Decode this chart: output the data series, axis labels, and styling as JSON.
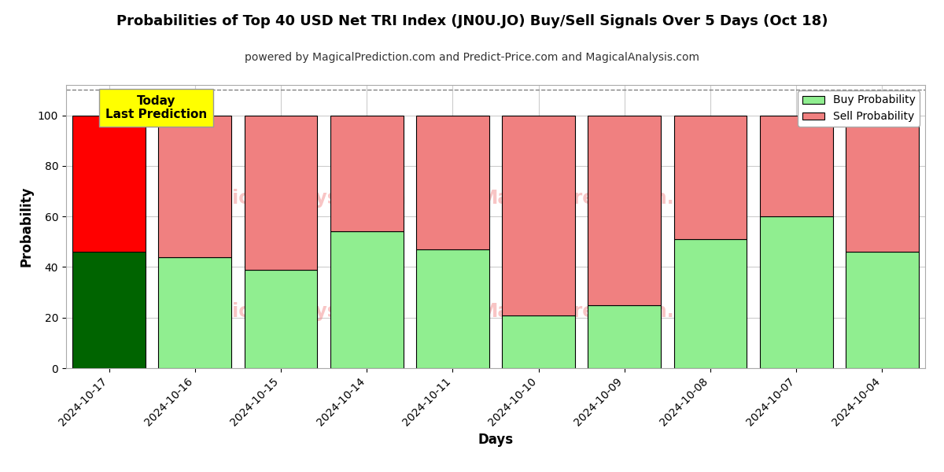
{
  "title": "Probabilities of Top 40 USD Net TRI Index (JN0U.JO) Buy/Sell Signals Over 5 Days (Oct 18)",
  "subtitle": "powered by MagicalPrediction.com and Predict-Price.com and MagicalAnalysis.com",
  "xlabel": "Days",
  "ylabel": "Probability",
  "dates": [
    "2024-10-17",
    "2024-10-16",
    "2024-10-15",
    "2024-10-14",
    "2024-10-11",
    "2024-10-10",
    "2024-10-09",
    "2024-10-08",
    "2024-10-07",
    "2024-10-04"
  ],
  "buy_probs": [
    46,
    44,
    39,
    54,
    47,
    21,
    25,
    51,
    60,
    46
  ],
  "sell_probs": [
    54,
    56,
    61,
    46,
    53,
    79,
    75,
    49,
    40,
    54
  ],
  "today_buy_color": "#006400",
  "today_sell_color": "#ff0000",
  "buy_color": "#90EE90",
  "sell_color": "#F08080",
  "bar_edgecolor": "#000000",
  "today_annotation_bg": "#ffff00",
  "today_annotation_text": "Today\nLast Prediction",
  "ylim": [
    0,
    112
  ],
  "yticks": [
    0,
    20,
    40,
    60,
    80,
    100
  ],
  "dashed_line_y": 110,
  "watermark_color": "#F08080",
  "background_color": "#ffffff",
  "grid_color": "#cccccc"
}
